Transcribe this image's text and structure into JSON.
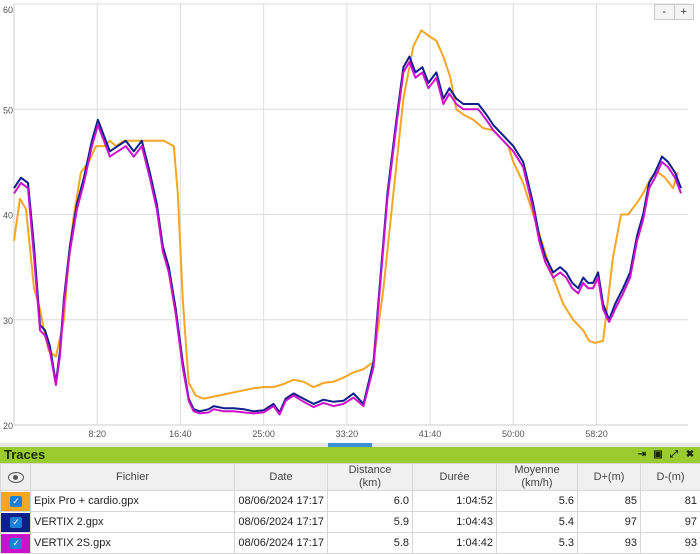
{
  "chart": {
    "zoom_out_label": "-",
    "zoom_in_label": "+"
  },
  "chart_data": {
    "type": "line",
    "xlabel": "",
    "ylabel": "",
    "x_unit": "minutes",
    "xlim_min": [
      0,
      67.5
    ],
    "ylim": [
      20,
      60
    ],
    "x_tick_labels": [
      "8:20",
      "16:40",
      "25:00",
      "33:20",
      "41:40",
      "50:00",
      "58:20"
    ],
    "x_tick_values": [
      8.333,
      16.667,
      25,
      33.333,
      41.667,
      50,
      58.333
    ],
    "y_tick_values": [
      20,
      30,
      40,
      50,
      60
    ],
    "grid": true,
    "series": [
      {
        "name": "Epix Pro + cardio.gpx",
        "color": "#f5a623",
        "x": [
          0,
          0.6,
          1.2,
          2,
          2.6,
          3,
          3.5,
          4.2,
          5,
          5.5,
          6,
          6.7,
          7.5,
          8.2,
          9,
          9.6,
          10.2,
          11,
          12,
          13,
          14,
          15,
          16,
          16.4,
          16.9,
          17.5,
          18.2,
          19,
          20,
          21,
          22,
          23,
          24,
          25,
          26,
          27,
          28,
          29,
          30,
          31,
          32,
          33,
          34,
          35,
          36,
          37,
          38,
          39,
          40,
          40.8,
          41.5,
          42.3,
          43,
          43.7,
          44.3,
          45,
          46,
          47,
          48,
          48.8,
          49.5,
          50,
          51,
          52,
          53,
          54,
          55,
          56,
          57,
          57.6,
          58.2,
          59,
          60,
          60.8,
          61.5,
          62.3,
          63,
          63.8,
          64.5,
          65.2,
          66,
          66.5
        ],
        "y": [
          37.5,
          41.5,
          40.5,
          33,
          31,
          29,
          27,
          26.5,
          30,
          36,
          40,
          44,
          45,
          46.5,
          46.5,
          47,
          46.5,
          47,
          47,
          47,
          47,
          47,
          46.5,
          42,
          32,
          24,
          22.8,
          22.5,
          22.7,
          22.9,
          23.1,
          23.3,
          23.5,
          23.6,
          23.6,
          23.9,
          24.3,
          24.1,
          23.6,
          24,
          24.1,
          24.5,
          25,
          25.3,
          26,
          33,
          42,
          51,
          56,
          57.5,
          57,
          56.5,
          55,
          53,
          50,
          49.5,
          49,
          48.2,
          48,
          47.2,
          46.5,
          45,
          43,
          40,
          37,
          34,
          31.5,
          30,
          29,
          28,
          27.8,
          28,
          36,
          40,
          40,
          41,
          42,
          43.5,
          44,
          43.5,
          42.5,
          44
        ]
      },
      {
        "name": "VERTIX 2.gpx",
        "color": "#0d1f8a",
        "x": [
          0,
          0.7,
          1.4,
          2,
          2.6,
          3.1,
          3.6,
          4.2,
          4.6,
          5,
          5.6,
          6.3,
          7,
          7.8,
          8.4,
          9,
          9.6,
          10.4,
          11.2,
          12,
          12.8,
          13.6,
          14.3,
          14.9,
          15.5,
          16.2,
          16.9,
          17.5,
          18,
          18.6,
          19.5,
          20,
          21,
          22,
          23,
          24,
          25,
          26,
          26.6,
          27.2,
          28,
          29,
          30,
          31,
          32,
          33,
          34,
          35,
          36,
          36.6,
          37.4,
          38.3,
          39,
          39.6,
          40.2,
          40.9,
          41.5,
          42.3,
          43,
          43.6,
          44.3,
          45,
          45.7,
          46.5,
          47.3,
          48,
          49,
          50,
          51,
          52,
          52.6,
          53.2,
          54,
          54.7,
          55.3,
          55.9,
          56.5,
          57,
          57.5,
          58,
          58.5,
          59,
          59.6,
          60.2,
          61,
          61.7,
          62.4,
          63,
          63.6,
          64.2,
          64.9,
          65.5,
          66.2,
          66.8
        ],
        "y": [
          42.5,
          43.5,
          43,
          37,
          29.5,
          29,
          27.5,
          24,
          27,
          32,
          37,
          41,
          43.5,
          47,
          49,
          47.5,
          46,
          46.5,
          47,
          46,
          47,
          44,
          41,
          37,
          35,
          31,
          26,
          22.5,
          21.5,
          21.3,
          21.5,
          21.8,
          21.6,
          21.6,
          21.5,
          21.3,
          21.4,
          22,
          21.2,
          22.5,
          23,
          22.5,
          22,
          22.4,
          22.2,
          22.3,
          23,
          22,
          26,
          33,
          42,
          49,
          54,
          55,
          53.5,
          54,
          52.5,
          53.5,
          51,
          52,
          51,
          50.5,
          50.5,
          50.5,
          49.5,
          48.5,
          47.5,
          46.5,
          45,
          41,
          38,
          36,
          34.5,
          35,
          34.5,
          33.5,
          33,
          34,
          33.5,
          33.5,
          34.5,
          31.5,
          30,
          31.5,
          33,
          34.5,
          38,
          40,
          43,
          44,
          45.5,
          45,
          44,
          42.5
        ]
      },
      {
        "name": "VERTIX 2S.gpx",
        "color": "#cc11cc",
        "x": [
          0,
          0.7,
          1.4,
          2,
          2.6,
          3.1,
          3.6,
          4.2,
          4.6,
          5,
          5.6,
          6.3,
          7,
          7.8,
          8.4,
          9,
          9.6,
          10.4,
          11.2,
          12,
          12.8,
          13.6,
          14.3,
          14.9,
          15.5,
          16.2,
          16.9,
          17.5,
          18,
          18.6,
          19.5,
          20,
          21,
          22,
          23,
          24,
          25,
          26,
          26.6,
          27.2,
          28,
          29,
          30,
          31,
          32,
          33,
          34,
          35,
          36,
          36.6,
          37.4,
          38.3,
          39,
          39.6,
          40.2,
          40.9,
          41.5,
          42.3,
          43,
          43.6,
          44.3,
          45,
          45.7,
          46.5,
          47.3,
          48,
          49,
          50,
          51,
          52,
          52.6,
          53.2,
          54,
          54.7,
          55.3,
          55.9,
          56.5,
          57,
          57.5,
          58,
          58.5,
          59,
          59.6,
          60.2,
          61,
          61.7,
          62.4,
          63,
          63.6,
          64.2,
          64.9,
          65.5,
          66.2,
          66.8
        ],
        "y": [
          42,
          43,
          42.5,
          36,
          29,
          28.5,
          27,
          23.8,
          26.5,
          31.5,
          36.5,
          40.5,
          43,
          46.5,
          48.5,
          47,
          45.5,
          46,
          46.5,
          45.5,
          46.5,
          43.5,
          40.5,
          36.5,
          34.5,
          30.5,
          25.5,
          22.3,
          21.3,
          21.1,
          21.2,
          21.5,
          21.3,
          21.3,
          21.2,
          21.1,
          21.2,
          21.8,
          21,
          22.3,
          22.8,
          22.2,
          21.7,
          22.1,
          21.8,
          22,
          22.6,
          21.8,
          25.5,
          32.5,
          41.5,
          48.5,
          53.5,
          54.5,
          53,
          53.5,
          52,
          53,
          50.5,
          51.5,
          50.5,
          50,
          50,
          50,
          49,
          48,
          47,
          46,
          44.5,
          40.5,
          37.5,
          35.5,
          34,
          34.5,
          34,
          33,
          32.5,
          33.5,
          33,
          33,
          34,
          31,
          29.8,
          31,
          32.5,
          34,
          37.5,
          39.5,
          42.5,
          43.5,
          45,
          44.5,
          43.5,
          42
        ]
      }
    ]
  },
  "panel": {
    "title": "Traces",
    "icons": [
      "arrow-right-bar-icon",
      "window-icon",
      "expand-icon",
      "close-icon"
    ]
  },
  "table": {
    "headers": {
      "file": "Fichier",
      "date": "Date",
      "distance": "Distance\n(km)",
      "duration": "Durée",
      "average": "Moyenne\n(km/h)",
      "dplus": "D+(m)",
      "dminus": "D-(m)"
    },
    "rows": [
      {
        "color": "#f5a623",
        "checked": true,
        "file": "Epix Pro + cardio.gpx",
        "date": "08/06/2024 17:17",
        "distance": "6.0",
        "duration": "1:04:52",
        "average": "5.6",
        "dplus": "85",
        "dminus": "81"
      },
      {
        "color": "#0d1f8a",
        "checked": true,
        "file": "VERTIX 2.gpx",
        "date": "08/06/2024 17:17",
        "distance": "5.9",
        "duration": "1:04:43",
        "average": "5.4",
        "dplus": "97",
        "dminus": "97"
      },
      {
        "color": "#cc11cc",
        "checked": true,
        "file": "VERTIX 2S.gpx",
        "date": "08/06/2024 17:17",
        "distance": "5.8",
        "duration": "1:04:42",
        "average": "5.3",
        "dplus": "93",
        "dminus": "93"
      }
    ]
  }
}
